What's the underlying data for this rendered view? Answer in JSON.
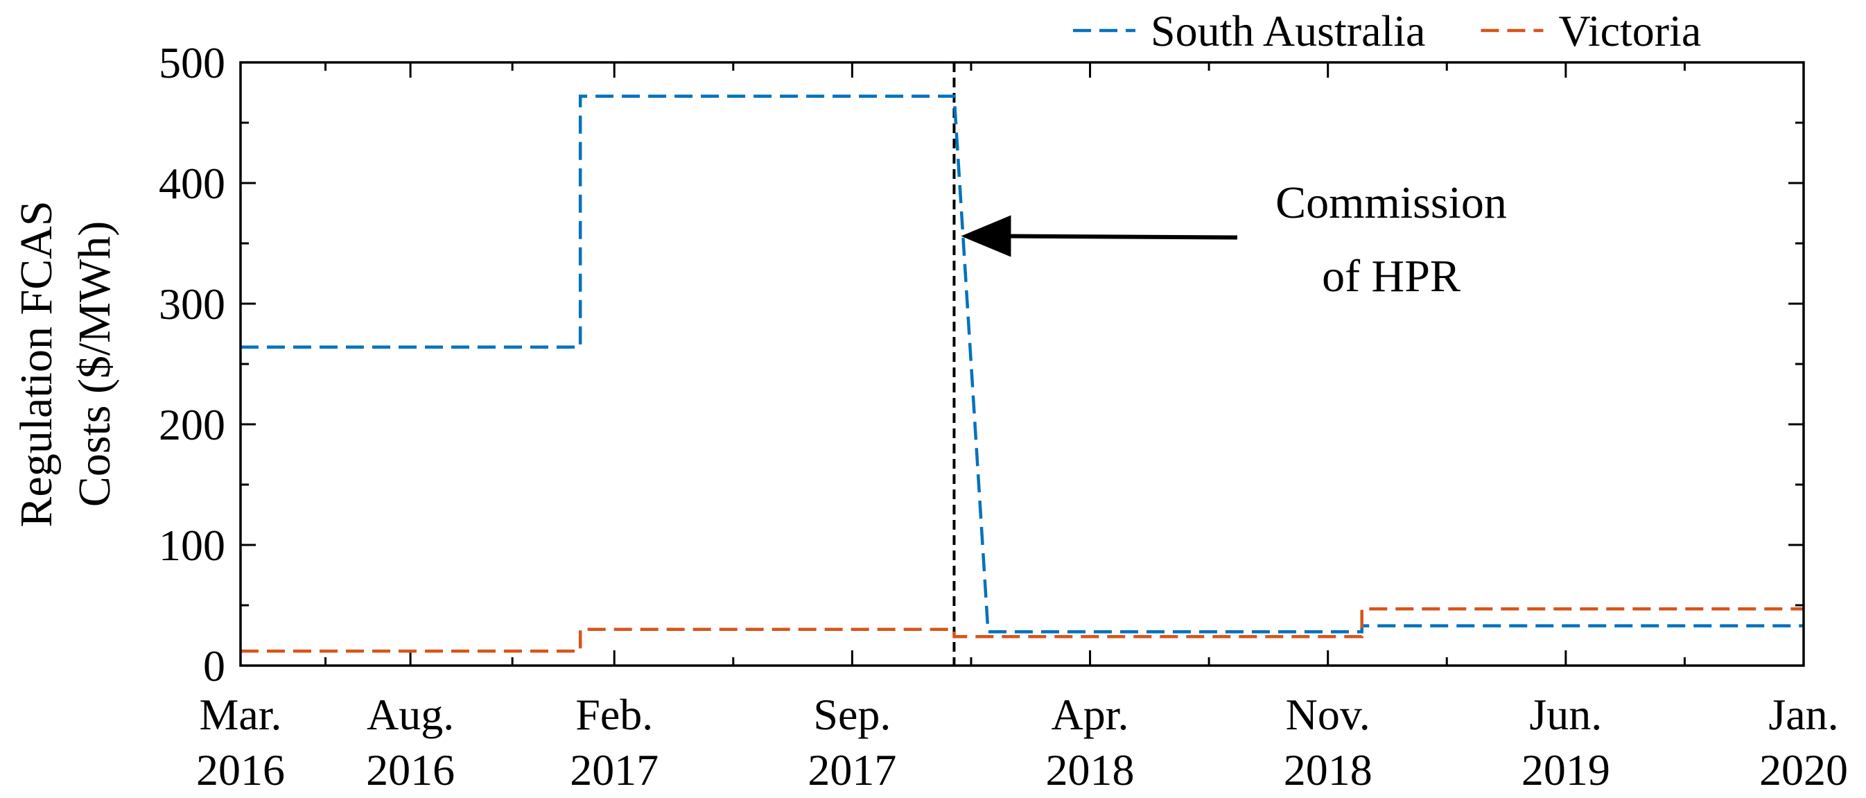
{
  "chart_data": {
    "type": "line",
    "ylabel_lines": [
      "Regulation FCAS",
      "Costs ($/MWh)"
    ],
    "xlabel": "",
    "ylim": [
      0,
      500
    ],
    "y_ticks": [
      0,
      100,
      200,
      300,
      400,
      500
    ],
    "x_range": [
      "2016-03",
      "2020-01"
    ],
    "x_ticks": [
      {
        "date": "2016-03",
        "line1": "Mar.",
        "line2": "2016"
      },
      {
        "date": "2016-08",
        "line1": "Aug.",
        "line2": "2016"
      },
      {
        "date": "2017-02",
        "line1": "Feb.",
        "line2": "2017"
      },
      {
        "date": "2017-09",
        "line1": "Sep.",
        "line2": "2017"
      },
      {
        "date": "2018-04",
        "line1": "Apr.",
        "line2": "2018"
      },
      {
        "date": "2018-11",
        "line1": "Nov.",
        "line2": "2018"
      },
      {
        "date": "2019-06",
        "line1": "Jun.",
        "line2": "2019"
      },
      {
        "date": "2020-01",
        "line1": "Jan.",
        "line2": "2020"
      }
    ],
    "grid": false,
    "legend_position": "top-right, above plot",
    "series": [
      {
        "name": "South Australia",
        "color": "#0072BD",
        "dash": "dashed",
        "points": [
          {
            "x": "2016-03",
            "y": 264
          },
          {
            "x": "2017-01",
            "y": 264
          },
          {
            "x": "2017-01",
            "y": 472
          },
          {
            "x": "2017-12",
            "y": 472
          },
          {
            "x": "2018-01",
            "y": 28
          },
          {
            "x": "2018-12",
            "y": 28
          },
          {
            "x": "2018-12",
            "y": 33
          },
          {
            "x": "2020-01",
            "y": 33
          }
        ]
      },
      {
        "name": "Victoria",
        "color": "#D95319",
        "dash": "dashed",
        "points": [
          {
            "x": "2016-03",
            "y": 12
          },
          {
            "x": "2017-01",
            "y": 12
          },
          {
            "x": "2017-01",
            "y": 30
          },
          {
            "x": "2017-12",
            "y": 30
          },
          {
            "x": "2017-12",
            "y": 24
          },
          {
            "x": "2018-12",
            "y": 24
          },
          {
            "x": "2018-12",
            "y": 47
          },
          {
            "x": "2020-01",
            "y": 47
          }
        ]
      }
    ],
    "vertical_marker": {
      "x": "2017-12",
      "style": "dashed",
      "color": "#000000"
    },
    "annotation": {
      "lines": [
        "Commission",
        "of HPR"
      ],
      "arrow_target_x": "2017-12",
      "arrow_target_y": 356
    }
  }
}
